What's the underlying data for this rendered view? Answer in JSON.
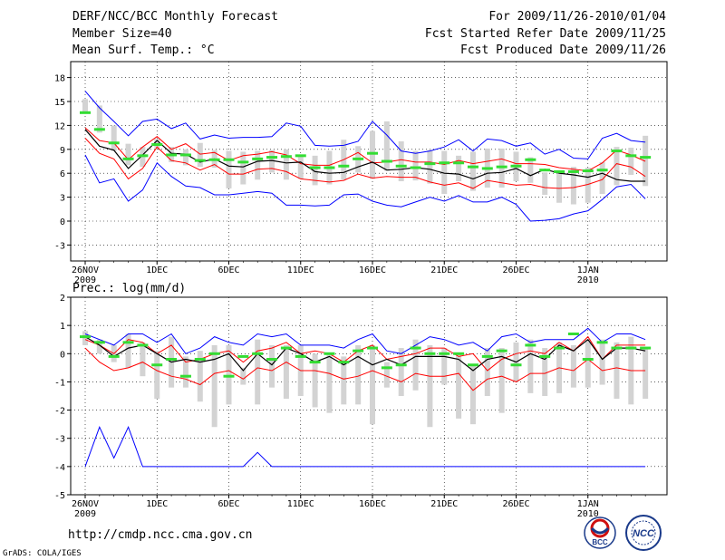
{
  "header": {
    "title": "DERF/NCC/BCC Monthly Forecast",
    "member": "Member Size=40",
    "variable": "Mean Surf. Temp.: °C",
    "period": "For 2009/11/26-2010/01/04",
    "refer": "Fcst Started Refer Date 2009/11/25",
    "produced": "Fcst Produced Date 2009/11/26"
  },
  "precip_label": "Prec.: log(mm/d)",
  "footer": {
    "url": "http://cmdp.ncc.cma.gov.cn",
    "grads": "GrADS: COLA/IGES",
    "logo1": "BCC",
    "logo2": "NCC"
  },
  "colors": {
    "max": "#0000ff",
    "mean": "#000000",
    "spread": "#ff0000",
    "observed_mark": "#33dd33",
    "box": "#d3d3d3",
    "grid": "#000000"
  },
  "chart_data": [
    {
      "type": "line",
      "title": "Mean Surf. Temp.: °C",
      "x_tick_labels": [
        "26NOV",
        "1DEC",
        "6DEC",
        "11DEC",
        "16DEC",
        "21DEC",
        "26DEC",
        "1JAN"
      ],
      "x_tick_sublabels": {
        "26NOV": "2009",
        "1JAN": "2010"
      },
      "x_days": 40,
      "ylim": [
        -5,
        20
      ],
      "yticks": [
        -3,
        0,
        3,
        6,
        9,
        12,
        15,
        18
      ],
      "series": [
        {
          "name": "max",
          "values": [
            16.3,
            14.2,
            12.5,
            10.7,
            12.5,
            12.8,
            11.6,
            12.3,
            10.3,
            10.8,
            10.4,
            10.5,
            10.5,
            10.6,
            12.3,
            11.9,
            9.5,
            9.4,
            9.5,
            10.0,
            12.5,
            10.8,
            8.8,
            8.5,
            8.8,
            9.3,
            10.2,
            8.8,
            10.3,
            10.1,
            9.4,
            9.8,
            8.4,
            9.0,
            7.9,
            7.8,
            10.4,
            11.0,
            10.1,
            9.9
          ]
        },
        {
          "name": "upper",
          "values": [
            11.7,
            10.1,
            9.8,
            7.7,
            9.3,
            10.6,
            9.0,
            9.7,
            8.4,
            8.6,
            7.6,
            8.2,
            8.4,
            8.7,
            8.3,
            7.2,
            7.0,
            7.0,
            7.7,
            8.6,
            7.3,
            7.4,
            7.7,
            7.4,
            7.4,
            7.1,
            7.6,
            7.2,
            7.5,
            7.8,
            7.2,
            7.2,
            7.1,
            6.7,
            6.5,
            6.3,
            7.3,
            8.9,
            8.3,
            7.5
          ]
        },
        {
          "name": "mean",
          "values": [
            11.5,
            9.4,
            8.9,
            6.6,
            8.3,
            10.1,
            8.5,
            8.4,
            7.4,
            7.8,
            6.9,
            6.8,
            7.5,
            7.6,
            7.3,
            7.4,
            6.2,
            6.0,
            6.1,
            6.8,
            7.4,
            6.4,
            6.5,
            6.7,
            6.5,
            6.0,
            5.9,
            5.3,
            6.0,
            6.1,
            6.6,
            5.7,
            6.5,
            6.0,
            5.8,
            5.5,
            6.0,
            5.2,
            5.0,
            5.0
          ]
        },
        {
          "name": "lower",
          "values": [
            10.4,
            8.5,
            7.8,
            5.3,
            6.6,
            9.3,
            7.6,
            7.3,
            6.4,
            7.1,
            5.9,
            5.9,
            6.5,
            6.6,
            6.2,
            5.3,
            5.1,
            4.9,
            5.1,
            5.9,
            5.4,
            5.6,
            5.5,
            5.5,
            4.9,
            4.5,
            4.8,
            4.1,
            5.1,
            4.8,
            4.5,
            4.6,
            4.2,
            4.1,
            4.2,
            4.6,
            5.2,
            7.2,
            6.8,
            5.6
          ]
        },
        {
          "name": "min",
          "values": [
            8.3,
            4.8,
            5.3,
            2.5,
            3.9,
            7.3,
            5.6,
            4.4,
            4.2,
            3.3,
            3.3,
            3.5,
            3.7,
            3.5,
            2.0,
            2.0,
            1.9,
            2.0,
            3.3,
            3.4,
            2.5,
            2.0,
            1.8,
            2.4,
            3.0,
            2.5,
            3.2,
            2.4,
            2.4,
            3.0,
            2.1,
            0.0,
            0.1,
            0.3,
            0.9,
            1.3,
            2.7,
            4.3,
            4.6,
            2.8
          ]
        },
        {
          "name": "observed",
          "values": [
            13.6,
            11.5,
            9.8,
            7.8,
            8.2,
            9.6,
            8.3,
            8.3,
            7.6,
            7.7,
            7.7,
            7.4,
            7.8,
            8.0,
            8.1,
            8.2,
            6.7,
            6.7,
            6.9,
            7.8,
            8.5,
            7.5,
            6.9,
            6.7,
            7.2,
            7.3,
            7.3,
            6.8,
            6.6,
            6.8,
            6.9,
            7.7,
            6.4,
            6.2,
            6.2,
            6.3,
            6.4,
            8.8,
            8.2,
            8.0
          ]
        }
      ],
      "box_ranges": [
        [
          13.7,
          15.3
        ],
        [
          11.1,
          14.5
        ],
        [
          8.8,
          12.0
        ],
        [
          7.0,
          9.7
        ],
        [
          6.8,
          9.3
        ],
        [
          9.2,
          10.3
        ],
        [
          7.4,
          9.3
        ],
        [
          7.0,
          9.0
        ],
        [
          6.8,
          9.8
        ],
        [
          6.7,
          8.9
        ],
        [
          4.1,
          8.8
        ],
        [
          4.6,
          8.7
        ],
        [
          5.2,
          8.8
        ],
        [
          6.1,
          8.9
        ],
        [
          5.2,
          9.0
        ],
        [
          5.3,
          8.2
        ],
        [
          4.5,
          8.2
        ],
        [
          4.6,
          8.8
        ],
        [
          5.2,
          10.2
        ],
        [
          6.1,
          9.4
        ],
        [
          5.3,
          11.3
        ],
        [
          6.3,
          12.5
        ],
        [
          5.0,
          10.0
        ],
        [
          5.1,
          8.8
        ],
        [
          4.7,
          8.9
        ],
        [
          3.4,
          8.8
        ],
        [
          5.0,
          8.2
        ],
        [
          3.8,
          8.7
        ],
        [
          4.2,
          9.1
        ],
        [
          4.2,
          9.1
        ],
        [
          5.0,
          8.7
        ],
        [
          4.8,
          8.0
        ],
        [
          3.3,
          6.1
        ],
        [
          2.3,
          5.9
        ],
        [
          2.1,
          6.8
        ],
        [
          2.3,
          6.7
        ],
        [
          3.4,
          7.4
        ],
        [
          4.5,
          9.3
        ],
        [
          5.8,
          9.2
        ],
        [
          4.4,
          10.7
        ]
      ]
    },
    {
      "type": "line",
      "title": "Prec.: log(mm/d)",
      "x_tick_labels": [
        "26NOV",
        "1DEC",
        "6DEC",
        "11DEC",
        "16DEC",
        "21DEC",
        "26DEC",
        "1JAN"
      ],
      "x_tick_sublabels": {
        "26NOV": "2009",
        "1JAN": "2010"
      },
      "x_days": 40,
      "ylim": [
        -5,
        2
      ],
      "yticks": [
        -5,
        -4,
        -3,
        -2,
        -1,
        0,
        1,
        2
      ],
      "series": [
        {
          "name": "max",
          "values": [
            0.7,
            0.5,
            0.3,
            0.7,
            0.7,
            0.4,
            0.7,
            0.0,
            0.2,
            0.6,
            0.4,
            0.3,
            0.7,
            0.6,
            0.7,
            0.3,
            0.3,
            0.3,
            0.2,
            0.5,
            0.7,
            0.1,
            0.0,
            0.3,
            0.6,
            0.5,
            0.3,
            0.4,
            0.1,
            0.6,
            0.7,
            0.4,
            0.5,
            0.5,
            0.5,
            0.9,
            0.4,
            0.7,
            0.7,
            0.5
          ]
        },
        {
          "name": "upper",
          "values": [
            0.5,
            0.3,
            0.0,
            0.5,
            0.4,
            0.0,
            0.3,
            -0.3,
            -0.2,
            0.0,
            0.1,
            -0.3,
            0.1,
            0.2,
            0.4,
            0.0,
            0.1,
            0.0,
            -0.3,
            0.1,
            0.3,
            -0.2,
            -0.1,
            0.0,
            0.2,
            0.2,
            -0.1,
            0.0,
            -0.6,
            -0.2,
            0.0,
            0.1,
            0.0,
            0.4,
            0.1,
            0.6,
            -0.2,
            0.3,
            0.3,
            0.3
          ]
        },
        {
          "name": "mean",
          "values": [
            0.6,
            0.3,
            -0.1,
            0.2,
            0.3,
            0.0,
            -0.3,
            -0.2,
            -0.3,
            -0.2,
            0.0,
            -0.6,
            0.0,
            -0.4,
            0.2,
            0.0,
            -0.3,
            -0.1,
            -0.4,
            -0.1,
            -0.4,
            -0.2,
            -0.4,
            -0.1,
            -0.1,
            -0.1,
            -0.2,
            -0.6,
            -0.2,
            -0.1,
            -0.3,
            0.0,
            -0.2,
            0.3,
            0.1,
            0.5,
            -0.2,
            0.2,
            0.2,
            0.1
          ]
        },
        {
          "name": "lower",
          "values": [
            0.2,
            -0.3,
            -0.6,
            -0.5,
            -0.3,
            -0.6,
            -0.8,
            -0.9,
            -1.1,
            -0.7,
            -0.6,
            -0.9,
            -0.5,
            -0.6,
            -0.3,
            -0.6,
            -0.6,
            -0.7,
            -0.9,
            -0.8,
            -0.6,
            -0.8,
            -1.0,
            -0.7,
            -0.8,
            -0.8,
            -0.7,
            -1.3,
            -0.9,
            -0.8,
            -1.0,
            -0.7,
            -0.7,
            -0.5,
            -0.6,
            -0.2,
            -0.6,
            -0.5,
            -0.6,
            -0.6
          ]
        },
        {
          "name": "min",
          "values": [
            -4.0,
            -2.6,
            -3.7,
            -2.6,
            -4.0,
            -4.0,
            -4.0,
            -4.0,
            -4.0,
            -4.0,
            -4.0,
            -4.0,
            -3.5,
            -4.0,
            -4.0,
            -4.0,
            -4.0,
            -4.0,
            -4.0,
            -4.0,
            -4.0,
            -4.0,
            -4.0,
            -4.0,
            -4.0,
            -4.0,
            -4.0,
            -4.0,
            -4.0,
            -4.0,
            -4.0,
            -4.0,
            -4.0,
            -4.0,
            -4.0,
            -4.0,
            -4.0,
            -4.0,
            -4.0,
            -4.0
          ]
        },
        {
          "name": "observed",
          "values": [
            0.6,
            0.4,
            -0.1,
            0.4,
            0.3,
            -0.4,
            -0.2,
            -0.8,
            -0.2,
            0.0,
            -0.8,
            -0.1,
            0.0,
            -0.2,
            0.2,
            -0.1,
            -0.3,
            0.0,
            -0.3,
            0.1,
            0.2,
            -0.5,
            -0.4,
            0.2,
            0.0,
            0.0,
            0.0,
            -0.4,
            -0.1,
            0.1,
            -0.4,
            0.3,
            -0.1,
            0.2,
            0.7,
            -0.2,
            0.4,
            0.2,
            0.2,
            0.2
          ]
        }
      ],
      "box_ranges": [
        [
          0.3,
          0.8
        ],
        [
          0.0,
          0.5
        ],
        [
          -0.3,
          0.3
        ],
        [
          -0.5,
          0.7
        ],
        [
          -0.8,
          0.4
        ],
        [
          -1.6,
          0.1
        ],
        [
          -1.2,
          0.6
        ],
        [
          -1.2,
          -0.1
        ],
        [
          -1.7,
          0.1
        ],
        [
          -2.6,
          0.3
        ],
        [
          -1.8,
          0.3
        ],
        [
          -1.1,
          -0.5
        ],
        [
          -1.8,
          0.5
        ],
        [
          -1.2,
          0.3
        ],
        [
          -1.6,
          0.3
        ],
        [
          -1.5,
          0.3
        ],
        [
          -1.9,
          0.0
        ],
        [
          -2.1,
          0.0
        ],
        [
          -1.8,
          -0.1
        ],
        [
          -1.8,
          0.3
        ],
        [
          -2.5,
          0.3
        ],
        [
          -1.2,
          -0.3
        ],
        [
          -1.5,
          0.2
        ],
        [
          -1.3,
          0.5
        ],
        [
          -2.6,
          0.3
        ],
        [
          -1.1,
          0.2
        ],
        [
          -2.3,
          0.0
        ],
        [
          -2.5,
          -0.4
        ],
        [
          -1.5,
          0.2
        ],
        [
          -2.1,
          0.2
        ],
        [
          -1.0,
          0.4
        ],
        [
          -1.4,
          0.5
        ],
        [
          -1.5,
          0.2
        ],
        [
          -1.4,
          0.4
        ],
        [
          -1.2,
          0.3
        ],
        [
          -1.2,
          0.5
        ],
        [
          -1.1,
          0.5
        ],
        [
          -1.6,
          0.4
        ],
        [
          -1.8,
          0.6
        ],
        [
          -1.6,
          0.2
        ]
      ]
    }
  ]
}
